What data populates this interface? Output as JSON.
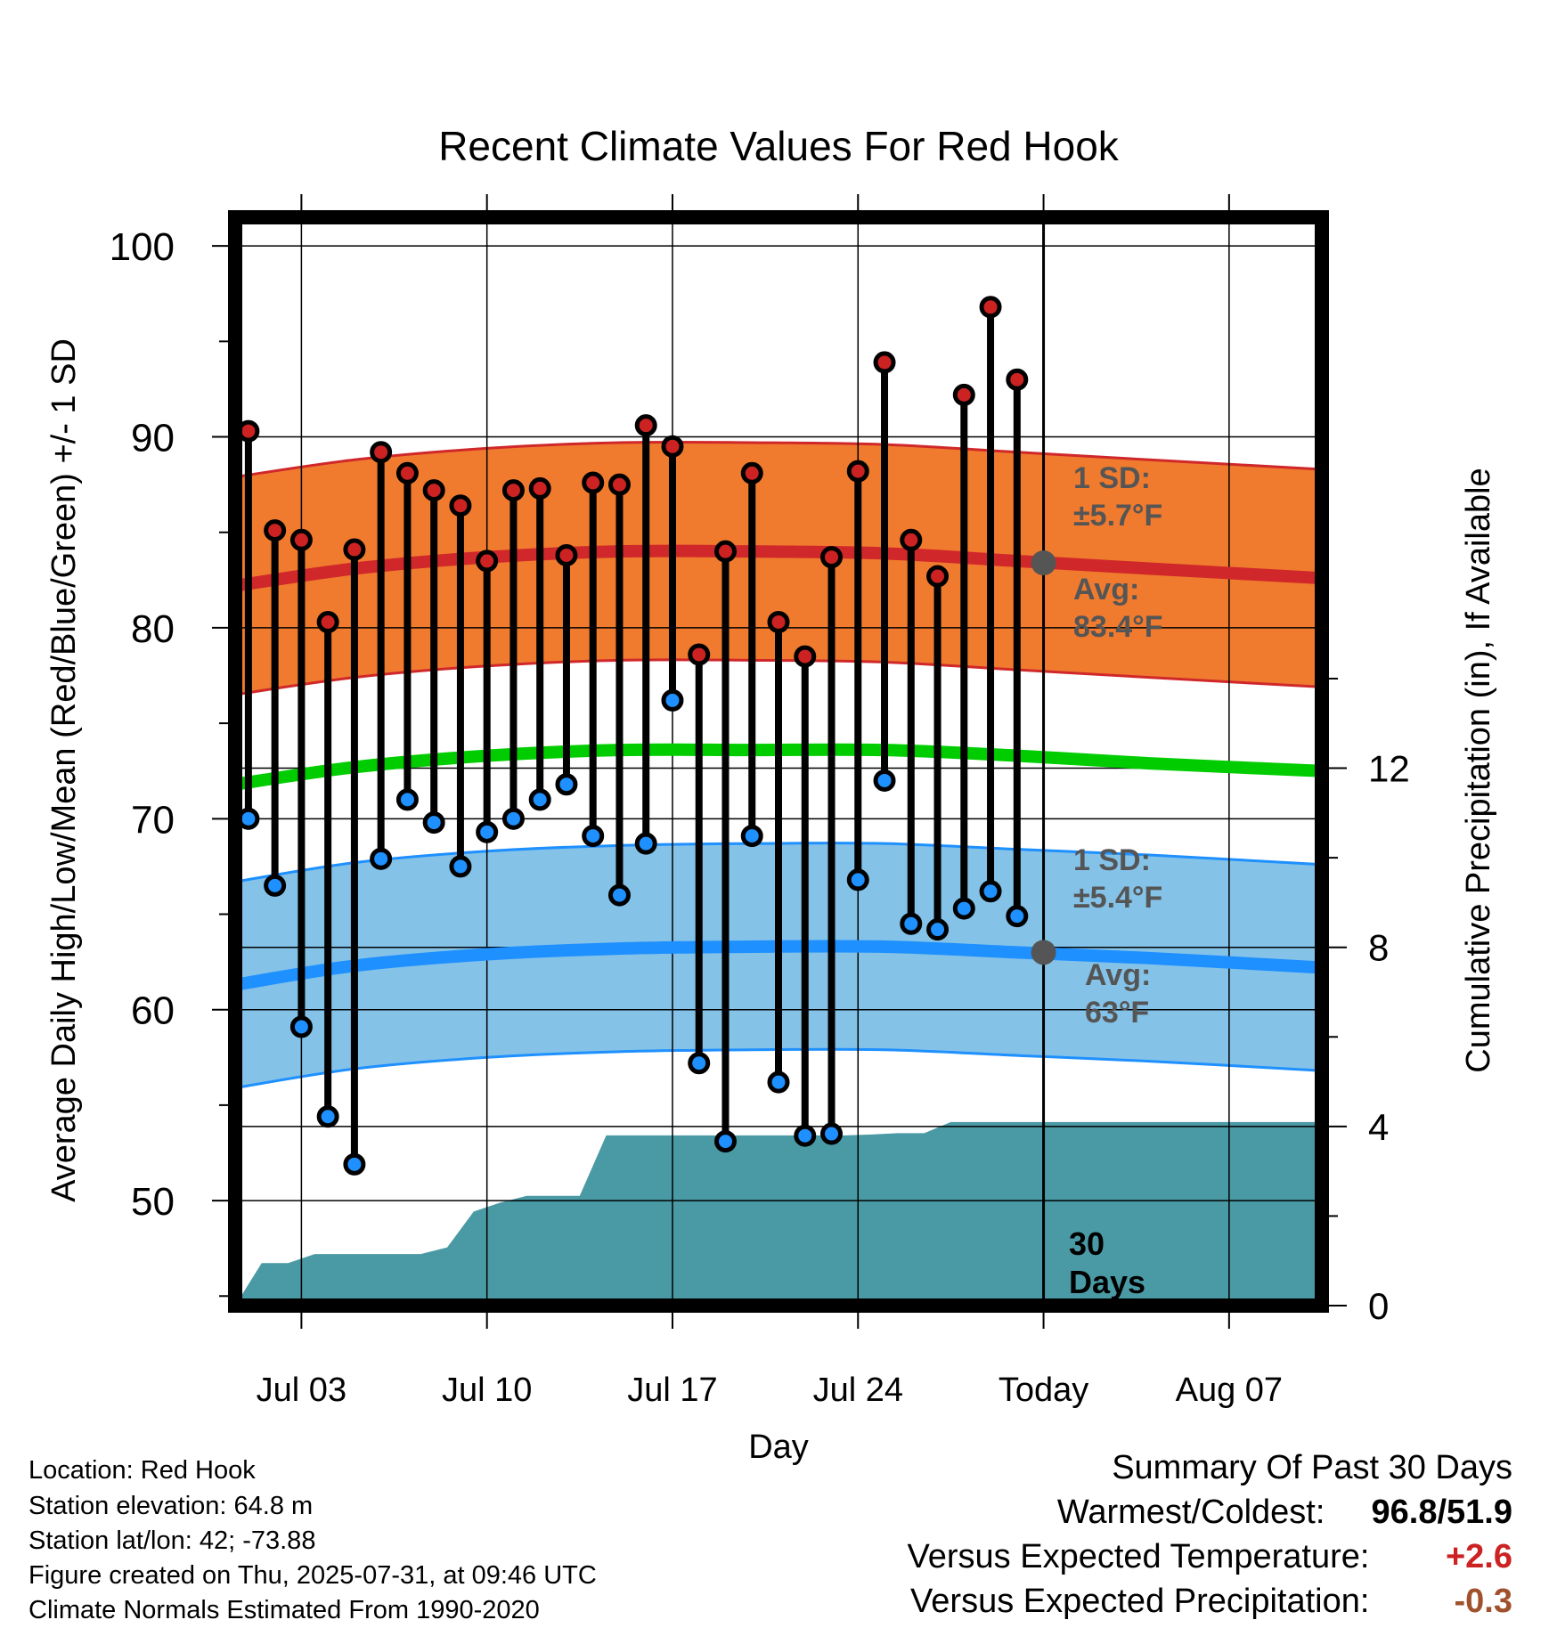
{
  "chart_data": {
    "type": "line",
    "title": "Recent Climate Values For Red Hook",
    "xlabel": "Day",
    "ylabel": "Average Daily High/Low/Mean (Red/Blue/Green) +/- 1 SD",
    "y2label": "Cumulative Precipitation (in), If Available",
    "x_tick_labels": [
      "Jul 03",
      "Jul 10",
      "Jul 17",
      "Jul 24",
      "Today",
      "Aug 07"
    ],
    "x_tick_days": [
      2,
      9,
      16,
      23,
      30,
      37
    ],
    "xlim": [
      -0.5,
      40.5
    ],
    "ylim": [
      44.5,
      101.5
    ],
    "y_ticks": [
      50,
      60,
      70,
      80,
      90,
      100
    ],
    "y2lim": [
      0,
      24.3
    ],
    "y2_ticks": [
      0,
      4,
      8,
      12
    ],
    "grid": true,
    "today_day": 30,
    "days": [
      0,
      1,
      2,
      3,
      4,
      5,
      6,
      7,
      8,
      9,
      10,
      11,
      12,
      13,
      14,
      15,
      16,
      17,
      18,
      19,
      20,
      21,
      22,
      23,
      24,
      25,
      26,
      27,
      28,
      29
    ],
    "series": [
      {
        "name": "Daily High",
        "color": "#cc2222",
        "values": [
          90.3,
          85.1,
          84.6,
          80.3,
          84.1,
          89.2,
          88.1,
          87.2,
          86.4,
          83.5,
          87.2,
          87.3,
          83.8,
          87.6,
          87.5,
          90.6,
          89.5,
          78.6,
          84.0,
          88.1,
          80.3,
          78.5,
          83.7,
          88.2,
          93.9,
          84.6,
          82.7,
          92.2,
          96.8,
          93.0
        ]
      },
      {
        "name": "Daily Low",
        "color": "#1e90ff",
        "values": [
          70.0,
          66.5,
          59.1,
          54.4,
          51.9,
          67.9,
          71.0,
          69.8,
          67.5,
          69.3,
          70.0,
          71.0,
          71.8,
          69.1,
          66.0,
          68.7,
          76.2,
          57.2,
          53.1,
          69.1,
          56.2,
          53.4,
          53.5,
          66.8,
          72.0,
          64.5,
          64.2,
          65.3,
          66.2,
          64.9
        ]
      }
    ],
    "normals_days": [
      -0.5,
      4,
      9,
      14,
      19,
      24,
      29,
      34,
      40.5
    ],
    "normal_high": [
      82.2,
      83.1,
      83.7,
      84.0,
      84.0,
      83.9,
      83.5,
      83.1,
      82.6
    ],
    "normal_mean": [
      71.8,
      72.7,
      73.3,
      73.6,
      73.6,
      73.6,
      73.3,
      72.9,
      72.5
    ],
    "normal_low": [
      61.3,
      62.3,
      62.9,
      63.2,
      63.3,
      63.3,
      63.0,
      62.7,
      62.2
    ],
    "sd_high": 5.7,
    "sd_low": 5.4,
    "precip_days": [
      -0.5,
      0.5,
      1.5,
      2.5,
      3.5,
      4.5,
      5.5,
      6.5,
      7.5,
      8.5,
      9.5,
      10.5,
      11.5,
      12.5,
      13.5,
      14.5,
      15.5,
      16.5,
      17.5,
      18.5,
      19.5,
      20.5,
      21.5,
      22.5,
      23.5,
      24.5,
      25.5,
      26.5,
      27.5,
      28.5,
      29.5,
      40.5
    ],
    "precip_cum": [
      0.0,
      0.95,
      0.95,
      1.15,
      1.15,
      1.15,
      1.15,
      1.15,
      1.3,
      2.1,
      2.3,
      2.45,
      2.45,
      2.45,
      3.8,
      3.8,
      3.8,
      3.8,
      3.8,
      3.8,
      3.8,
      3.8,
      3.8,
      3.8,
      3.82,
      3.85,
      3.85,
      4.1,
      4.1,
      4.1,
      4.1,
      4.1
    ],
    "colors": {
      "high_band": "#f07b2e",
      "high_line": "#d0282a",
      "mean_line": "#00cc00",
      "low_band": "#84c2e8",
      "low_line": "#1e90ff",
      "precip": "#4a9aa5",
      "annotation": "#555555"
    },
    "annotations": {
      "high_sd_label": "1 SD:",
      "high_sd_value": "±5.7°F",
      "high_avg_label": "Avg:",
      "high_avg_value": "83.4°F",
      "low_sd_label": "1 SD:",
      "low_sd_value": "±5.4°F",
      "low_avg_label": "Avg:",
      "low_avg_value": "63°F",
      "days_number": "30",
      "days_word": "Days"
    }
  },
  "info": {
    "location": "Location: Red Hook",
    "elevation": "Station elevation: 64.8 m",
    "latlon": "Station lat/lon: 42; -73.88",
    "created": "Figure created on Thu, 2025-07-31, at 09:46 UTC",
    "normals": "Climate Normals Estimated From 1990-2020"
  },
  "summary": {
    "title": "Summary Of Past 30 Days",
    "warm_cold_label": "Warmest/Coldest:",
    "warm_cold_value": "96.8/51.9",
    "temp_label": "Versus Expected Temperature:",
    "temp_value": "+2.6",
    "temp_color": "#cc2222",
    "precip_label": "Versus Expected Precipitation:",
    "precip_value": "-0.3",
    "precip_color": "#a0522d"
  }
}
